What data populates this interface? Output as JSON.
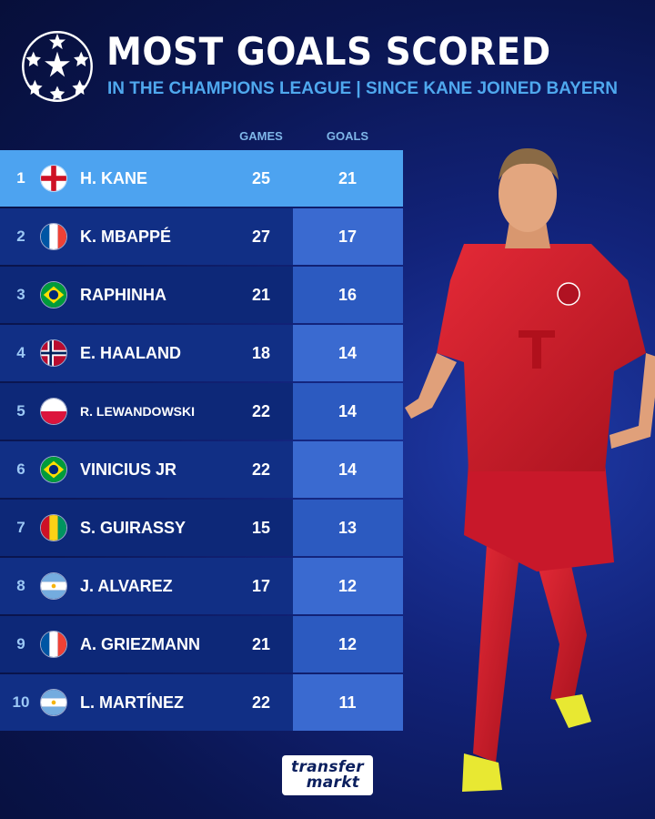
{
  "header": {
    "title": "MOST GOALS SCORED",
    "subtitle": "IN THE CHAMPIONS LEAGUE | SINCE KANE JOINED BAYERN",
    "logo": "champions-league-starball-icon"
  },
  "columns": {
    "games": "GAMES",
    "goals": "GOALS"
  },
  "rows": [
    {
      "rank": "1",
      "flag": "england",
      "name": "H. KANE",
      "games": "25",
      "goals": "21"
    },
    {
      "rank": "2",
      "flag": "france",
      "name": "K. MBAPPÉ",
      "games": "27",
      "goals": "17"
    },
    {
      "rank": "3",
      "flag": "brazil",
      "name": "RAPHINHA",
      "games": "21",
      "goals": "16"
    },
    {
      "rank": "4",
      "flag": "norway",
      "name": "E. HAALAND",
      "games": "18",
      "goals": "14"
    },
    {
      "rank": "5",
      "flag": "poland",
      "name": "R. LEWANDOWSKI",
      "games": "22",
      "goals": "14"
    },
    {
      "rank": "6",
      "flag": "brazil",
      "name": "VINICIUS JR",
      "games": "22",
      "goals": "14"
    },
    {
      "rank": "7",
      "flag": "guinea",
      "name": "S. GUIRASSY",
      "games": "15",
      "goals": "13"
    },
    {
      "rank": "8",
      "flag": "argentina",
      "name": "J. ALVAREZ",
      "games": "17",
      "goals": "12"
    },
    {
      "rank": "9",
      "flag": "france",
      "name": "A. GRIEZMANN",
      "games": "21",
      "goals": "12"
    },
    {
      "rank": "10",
      "flag": "argentina",
      "name": "L. MARTÍNEZ",
      "games": "22",
      "goals": "11"
    }
  ],
  "footer": {
    "brand_line1": "transfer",
    "brand_line2": "markt"
  },
  "colors": {
    "accent": "#4da3f0",
    "subtitle": "#4fa8ee",
    "background": "#0a1550",
    "kit_red": "#d81e2c"
  }
}
